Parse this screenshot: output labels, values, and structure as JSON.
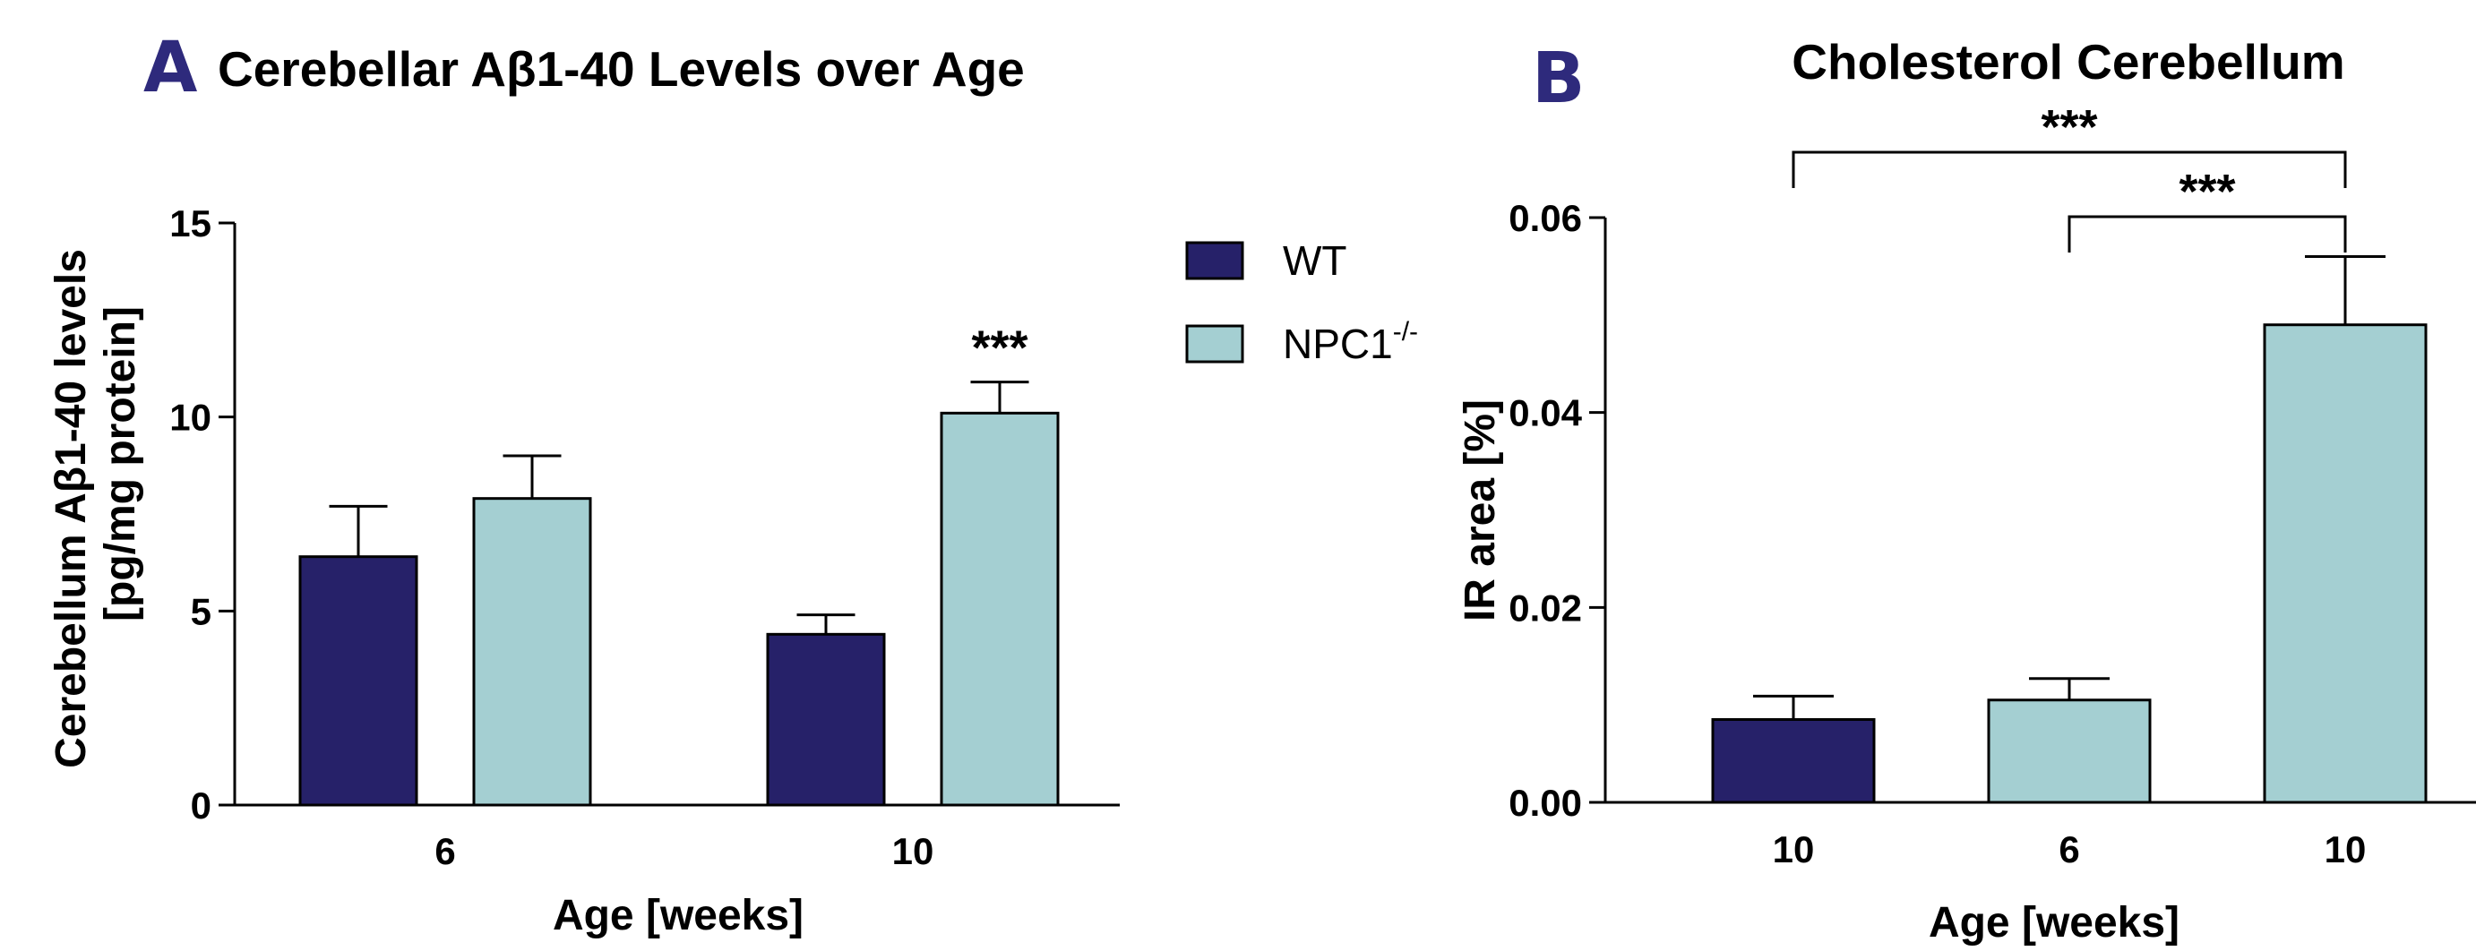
{
  "colors": {
    "wt": "#262169",
    "npc1": "#a4cfd2",
    "axis": "#000000",
    "letter": "#2e2a7c"
  },
  "legend": {
    "wt_label": "WT",
    "npc1_label": "NPC1",
    "npc1_superscript": "-/-"
  },
  "chart_data": [
    {
      "panel_letter": "A",
      "type": "bar",
      "title": "Cerebellar Aβ1-40 Levels over Age",
      "xlabel": "Age [weeks]",
      "ylabel": [
        "Cerebellum Aβ1-40 levels",
        "[pg/mg protein]"
      ],
      "ylim": [
        0,
        15
      ],
      "yticks": [
        "0",
        "5",
        "10",
        "15"
      ],
      "categories": [
        "6",
        "10"
      ],
      "series": [
        {
          "name": "WT",
          "values": [
            6.4,
            4.4
          ],
          "errors": [
            1.3,
            0.5
          ]
        },
        {
          "name": "NPC1-/-",
          "values": [
            7.9,
            10.1
          ],
          "errors": [
            1.1,
            0.8
          ]
        }
      ],
      "annotations": [
        {
          "text": "***",
          "category": "10",
          "series": "NPC1-/-"
        }
      ],
      "legend_position": "right"
    },
    {
      "panel_letter": "B",
      "type": "bar",
      "title": "Cholesterol Cerebellum",
      "xlabel": "Age [weeks]",
      "ylabel": [
        "IR area [%]"
      ],
      "ylim": [
        0,
        0.06
      ],
      "yticks": [
        "0.00",
        "0.02",
        "0.04",
        "0.06"
      ],
      "bars": [
        {
          "label": "10",
          "group": "WT",
          "value": 0.0085,
          "error": 0.0024
        },
        {
          "label": "6",
          "group": "NPC1-/-",
          "value": 0.0105,
          "error": 0.0022
        },
        {
          "label": "10",
          "group": "NPC1-/-",
          "value": 0.049,
          "error": 0.007
        }
      ],
      "significance": [
        {
          "from": 0,
          "to": 2,
          "text": "***"
        },
        {
          "from": 1,
          "to": 2,
          "text": "***"
        }
      ]
    }
  ]
}
